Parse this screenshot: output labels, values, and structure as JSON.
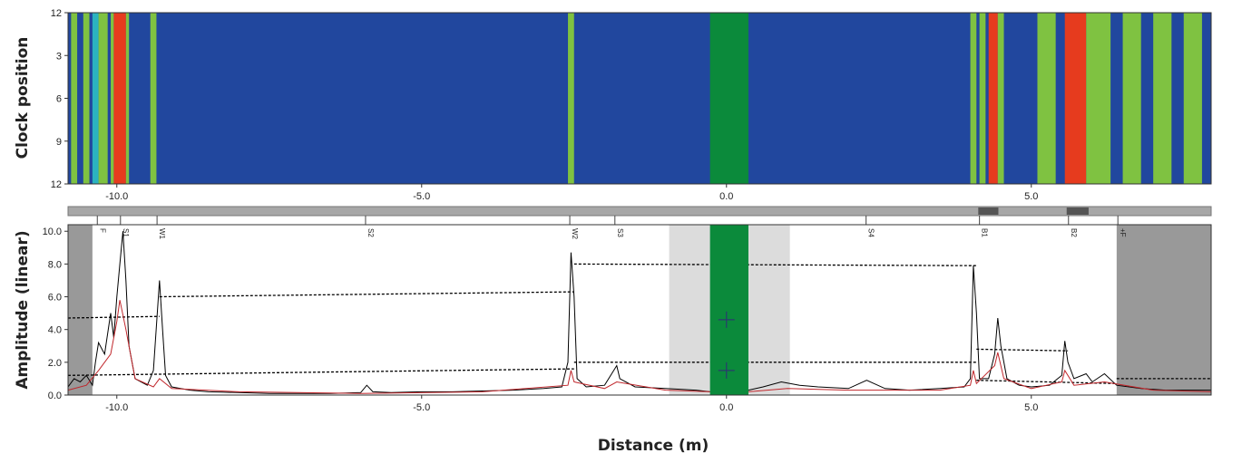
{
  "chart_data": [
    {
      "type": "heatmap",
      "ylabel": "Clock position",
      "xlim": [
        -10.8,
        7.95
      ],
      "ylim": [
        0,
        12
      ],
      "xticks": [
        {
          "value": -10,
          "label": "-10.0"
        },
        {
          "value": -5,
          "label": "-5.0"
        },
        {
          "value": 0,
          "label": "0.0"
        },
        {
          "value": 5,
          "label": "5.0"
        }
      ],
      "yticks": [
        {
          "value": 0,
          "label": "12"
        },
        {
          "value": 3,
          "label": "3"
        },
        {
          "value": 6,
          "label": "6"
        },
        {
          "value": 9,
          "label": "9"
        },
        {
          "value": 12,
          "label": "12"
        }
      ],
      "background": "#21479e",
      "bands": [
        {
          "x0": -10.75,
          "x1": -10.65,
          "color": "#7fc241"
        },
        {
          "x0": -10.55,
          "x1": -10.45,
          "color": "#7fc241"
        },
        {
          "x0": -10.4,
          "x1": -10.3,
          "color": "#2bb3c0"
        },
        {
          "x0": -10.3,
          "x1": -10.15,
          "color": "#7fc241"
        },
        {
          "x0": -10.1,
          "x1": -10.05,
          "color": "#7fc241"
        },
        {
          "x0": -10.05,
          "x1": -9.85,
          "color": "#e63b1e"
        },
        {
          "x0": -9.85,
          "x1": -9.8,
          "color": "#7fc241"
        },
        {
          "x0": -9.45,
          "x1": -9.35,
          "color": "#7fc241"
        },
        {
          "x0": -2.6,
          "x1": -2.5,
          "color": "#7fc241"
        },
        {
          "x0": -0.27,
          "x1": 0.36,
          "color": "#0b8a3b"
        },
        {
          "x0": 4.0,
          "x1": 4.1,
          "color": "#7fc241"
        },
        {
          "x0": 4.15,
          "x1": 4.25,
          "color": "#7fc241"
        },
        {
          "x0": 4.3,
          "x1": 4.45,
          "color": "#e63b1e"
        },
        {
          "x0": 4.45,
          "x1": 4.55,
          "color": "#7fc241"
        },
        {
          "x0": 5.1,
          "x1": 5.4,
          "color": "#7fc241"
        },
        {
          "x0": 5.55,
          "x1": 5.9,
          "color": "#e63b1e"
        },
        {
          "x0": 5.9,
          "x1": 6.3,
          "color": "#7fc241"
        },
        {
          "x0": 6.5,
          "x1": 6.8,
          "color": "#7fc241"
        },
        {
          "x0": 7.0,
          "x1": 7.3,
          "color": "#7fc241"
        },
        {
          "x0": 7.5,
          "x1": 7.8,
          "color": "#7fc241"
        }
      ],
      "bar_segments": [
        {
          "x0": 4.13,
          "x1": 4.46
        },
        {
          "x0": 5.58,
          "x1": 5.94
        }
      ]
    },
    {
      "type": "line",
      "ylabel": "Amplitude (linear)",
      "xlabel": "Distance (m)",
      "xlim": [
        -10.8,
        7.95
      ],
      "ylim": [
        0,
        10.4
      ],
      "xticks": [
        {
          "value": -10,
          "label": "-10.0"
        },
        {
          "value": -5,
          "label": "-5.0"
        },
        {
          "value": 0,
          "label": "0.0"
        },
        {
          "value": 5,
          "label": "5.0"
        }
      ],
      "yticks": [
        {
          "value": 0,
          "label": "0.0"
        },
        {
          "value": 2,
          "label": "2.0"
        },
        {
          "value": 4,
          "label": "4.0"
        },
        {
          "value": 6,
          "label": "6.0"
        },
        {
          "value": 8,
          "label": "8.0"
        },
        {
          "value": 10,
          "label": "10.0"
        }
      ],
      "regions": [
        {
          "x0": -10.8,
          "x1": -10.4,
          "color": "#999999"
        },
        {
          "x0": 6.4,
          "x1": 7.95,
          "color": "#999999"
        },
        {
          "x0": -0.94,
          "x1": 1.04,
          "color": "#dcdcdc"
        }
      ],
      "center": {
        "x0": -0.27,
        "x1": 0.36,
        "color": "#0b8a3b"
      },
      "thresholds": [
        {
          "color": "#000000",
          "x": [
            -10.8,
            -9.3,
            null,
            -9.3,
            -2.5,
            null,
            -2.5,
            4.1,
            null,
            4.1,
            5.6,
            null,
            6.4,
            7.95
          ],
          "y": [
            4.7,
            4.8,
            null,
            6.0,
            6.3,
            null,
            8.0,
            7.9,
            null,
            2.8,
            2.7,
            null,
            1.0,
            1.0
          ]
        },
        {
          "color": "#000000",
          "x": [
            -10.8,
            -2.5,
            null,
            -2.5,
            4.1,
            null,
            4.1,
            6.4
          ],
          "y": [
            1.2,
            1.6,
            null,
            2.0,
            2.0,
            null,
            0.9,
            0.7
          ]
        }
      ],
      "series": [
        {
          "color": "#000000",
          "x": [
            -10.8,
            -10.7,
            -10.6,
            -10.5,
            -10.4,
            -10.35,
            -10.3,
            -10.2,
            -10.1,
            -10.05,
            -10.0,
            -9.95,
            -9.9,
            -9.85,
            -9.8,
            -9.7,
            -9.6,
            -9.5,
            -9.4,
            -9.3,
            -9.25,
            -9.2,
            -9.1,
            -8.8,
            -8.5,
            -8.0,
            -7.5,
            -7.0,
            -6.5,
            -6.0,
            -5.9,
            -5.8,
            -5.5,
            -5.0,
            -4.5,
            -4.0,
            -3.5,
            -3.0,
            -2.7,
            -2.6,
            -2.55,
            -2.5,
            -2.45,
            -2.3,
            -2.0,
            -1.8,
            -1.75,
            -1.5,
            -1.0,
            -0.5,
            -0.27,
            0.36,
            0.6,
            0.9,
            1.2,
            1.5,
            2.0,
            2.3,
            2.6,
            3.0,
            3.5,
            3.9,
            4.0,
            4.05,
            4.1,
            4.15,
            4.3,
            4.4,
            4.45,
            4.5,
            4.6,
            4.8,
            5.0,
            5.3,
            5.5,
            5.55,
            5.6,
            5.7,
            5.9,
            6.0,
            6.2,
            6.4,
            6.8,
            7.2,
            7.6,
            7.95
          ],
          "values": [
            0.5,
            1.0,
            0.8,
            1.2,
            0.6,
            2.0,
            3.2,
            2.5,
            5.0,
            3.5,
            6.0,
            8.0,
            10.0,
            7.0,
            3.0,
            1.0,
            0.8,
            0.6,
            1.5,
            7.0,
            4.0,
            1.2,
            0.5,
            0.3,
            0.2,
            0.15,
            0.1,
            0.1,
            0.1,
            0.15,
            0.6,
            0.2,
            0.15,
            0.2,
            0.2,
            0.25,
            0.3,
            0.4,
            0.5,
            2.0,
            8.7,
            6.0,
            1.0,
            0.5,
            0.6,
            1.8,
            1.0,
            0.5,
            0.4,
            0.3,
            0.2,
            0.3,
            0.5,
            0.8,
            0.6,
            0.5,
            0.4,
            0.9,
            0.4,
            0.3,
            0.4,
            0.5,
            1.0,
            7.9,
            5.0,
            1.0,
            1.0,
            2.5,
            4.7,
            3.0,
            1.0,
            0.6,
            0.5,
            0.6,
            1.2,
            3.3,
            2.0,
            1.0,
            1.3,
            0.8,
            1.3,
            0.6,
            0.4,
            0.3,
            0.3,
            0.3
          ]
        },
        {
          "color": "#c0262b",
          "x": [
            -10.8,
            -10.5,
            -10.3,
            -10.1,
            -10.0,
            -9.95,
            -9.85,
            -9.7,
            -9.4,
            -9.3,
            -9.1,
            -8.0,
            -6.0,
            -4.0,
            -2.6,
            -2.55,
            -2.5,
            -2.0,
            -1.8,
            -1.0,
            -0.27,
            0.36,
            1.0,
            2.0,
            3.5,
            4.0,
            4.05,
            4.1,
            4.4,
            4.45,
            4.55,
            5.0,
            5.5,
            5.55,
            5.7,
            6.2,
            7.0,
            7.95
          ],
          "values": [
            0.3,
            0.6,
            1.5,
            2.5,
            4.5,
            5.8,
            4.0,
            1.0,
            0.5,
            1.0,
            0.4,
            0.2,
            0.1,
            0.2,
            0.6,
            1.5,
            0.8,
            0.4,
            0.8,
            0.3,
            0.2,
            0.2,
            0.4,
            0.3,
            0.3,
            0.6,
            1.5,
            0.7,
            1.8,
            2.6,
            1.0,
            0.4,
            0.8,
            1.5,
            0.6,
            0.8,
            0.3,
            0.2
          ]
        }
      ],
      "markers": {
        "x": [
          0,
          0
        ],
        "y": [
          4.6,
          1.5
        ]
      },
      "features": [
        {
          "x": -10.32,
          "label": "F"
        },
        {
          "x": -9.94,
          "label": "S1"
        },
        {
          "x": -9.34,
          "label": "W1"
        },
        {
          "x": -5.92,
          "label": "S2"
        },
        {
          "x": -2.57,
          "label": "W2"
        },
        {
          "x": -1.83,
          "label": "S3"
        },
        {
          "x": 2.29,
          "label": "S4"
        },
        {
          "x": 4.15,
          "label": "B1"
        },
        {
          "x": 5.61,
          "label": "B2"
        },
        {
          "x": 6.42,
          "label": "+F"
        }
      ]
    }
  ]
}
